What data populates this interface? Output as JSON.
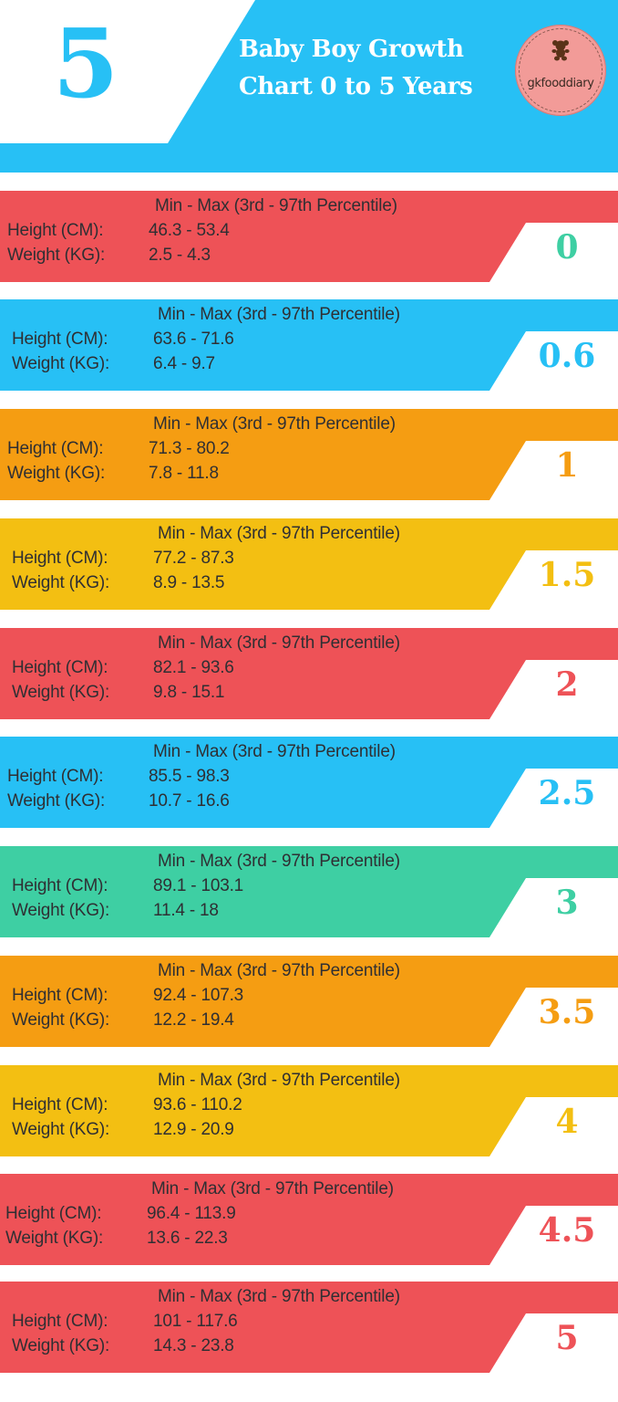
{
  "header": {
    "big_number": "5",
    "title_line1": "Baby Boy Growth",
    "title_line2": "Chart 0 to 5 Years",
    "logo_text": "gkfooddiary",
    "logo_icon": "teddy-bear-icon",
    "accent_color": "#27c0f5"
  },
  "labels": {
    "range_header": "Min  - Max (3rd  - 97th Percentile)",
    "height": "Height (CM):",
    "weight": "Weight (KG):"
  },
  "bands": [
    {
      "age": "0",
      "height": "46.3 - 53.4",
      "weight": "2.5   - 4.3",
      "color": "#ee5257",
      "age_color": "#3ecfa3"
    },
    {
      "age": "0.6",
      "height": "63.6  - 71.6",
      "weight": "6.4    - 9.7",
      "color": "#27c0f5",
      "age_color": "#27c0f5"
    },
    {
      "age": "1",
      "height": "71.3 - 80.2",
      "weight": "7.8   - 11.8",
      "color": "#f59d12",
      "age_color": "#f59d12"
    },
    {
      "age": "1.5",
      "height": "77.2 - 87.3",
      "weight": "8.9   - 13.5",
      "color": "#f3bf12",
      "age_color": "#f3bf12"
    },
    {
      "age": "2",
      "height": "82.1 - 93.6",
      "weight": "9.8   - 15.1",
      "color": "#ee5257",
      "age_color": "#ee5257"
    },
    {
      "age": "2.5",
      "height": "85.5 - 98.3",
      "weight": "10.7 - 16.6",
      "color": "#27c0f5",
      "age_color": "#27c0f5"
    },
    {
      "age": "3",
      "height": "89.1 - 103.1",
      "weight": "11.4 - 18",
      "color": "#3ecfa3",
      "age_color": "#3ecfa3"
    },
    {
      "age": "3.5",
      "height": "92.4 - 107.3",
      "weight": "12.2 - 19.4",
      "color": "#f59d12",
      "age_color": "#f59d12"
    },
    {
      "age": "4",
      "height": "93.6 - 110.2",
      "weight": "12.9 - 20.9",
      "color": "#f3bf12",
      "age_color": "#f3bf12"
    },
    {
      "age": "4.5",
      "height": "96.4 - 113.9",
      "weight": "13.6 - 22.3",
      "color": "#ee5257",
      "age_color": "#ee5257"
    },
    {
      "age": "5",
      "height": "101 - 117.6",
      "weight": "14.3 - 23.8",
      "color": "#ee5257",
      "age_color": "#ee5257"
    }
  ]
}
